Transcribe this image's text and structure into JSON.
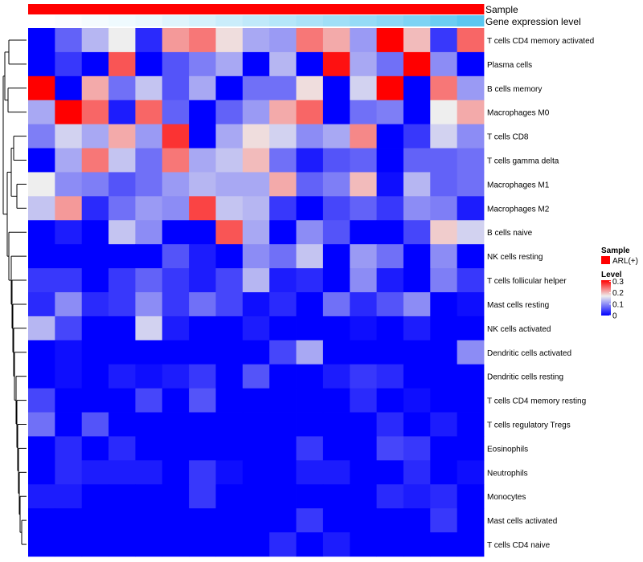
{
  "chart_data": {
    "type": "heatmap",
    "title": "",
    "annotation_tracks": [
      {
        "name": "Sample",
        "label": "Sample"
      },
      {
        "name": "Gene expression level",
        "label": "Gene expression level"
      }
    ],
    "rows": [
      "T cells CD4 memory activated",
      "Plasma cells",
      "B cells memory",
      "Macrophages M0",
      "T cells CD8",
      "T cells gamma delta",
      "Macrophages M1",
      "Macrophages M2",
      "B cells naive",
      "NK cells resting",
      "T cells follicular helper",
      "Mast cells resting",
      "NK cells activated",
      "Dendritic cells activated",
      "Dendritic cells resting",
      "T cells CD4 memory resting",
      "T cells regulatory  Tregs",
      "Eosinophils",
      "Neutrophils",
      "Monocytes",
      "Mast cells activated",
      "T cells CD4 naive"
    ],
    "n_columns": 17,
    "values": [
      [
        0.0,
        0.07,
        0.13,
        0.17,
        0.03,
        0.22,
        0.24,
        0.18,
        0.12,
        0.11,
        0.24,
        0.21,
        0.11,
        0.31,
        0.2,
        0.04,
        0.25
      ],
      [
        0.0,
        0.04,
        0.0,
        0.26,
        0.0,
        0.06,
        0.09,
        0.12,
        0.0,
        0.13,
        0.0,
        0.3,
        0.12,
        0.08,
        0.31,
        0.1,
        0.0
      ],
      [
        0.31,
        0.0,
        0.21,
        0.08,
        0.14,
        0.06,
        0.12,
        0.0,
        0.08,
        0.08,
        0.18,
        0.0,
        0.15,
        0.31,
        0.0,
        0.24,
        0.11
      ],
      [
        0.12,
        0.31,
        0.25,
        0.02,
        0.25,
        0.07,
        0.0,
        0.07,
        0.11,
        0.21,
        0.25,
        0.0,
        0.08,
        0.09,
        0.0,
        0.17,
        0.21
      ],
      [
        0.09,
        0.15,
        0.12,
        0.21,
        0.11,
        0.28,
        0.0,
        0.12,
        0.18,
        0.15,
        0.1,
        0.12,
        0.23,
        0.0,
        0.04,
        0.15,
        0.1
      ],
      [
        0.0,
        0.12,
        0.24,
        0.14,
        0.08,
        0.24,
        0.12,
        0.14,
        0.2,
        0.08,
        0.02,
        0.06,
        0.07,
        0.0,
        0.07,
        0.07,
        0.08
      ],
      [
        0.17,
        0.1,
        0.09,
        0.06,
        0.08,
        0.11,
        0.13,
        0.12,
        0.12,
        0.21,
        0.07,
        0.09,
        0.2,
        0.01,
        0.13,
        0.07,
        0.08
      ],
      [
        0.14,
        0.22,
        0.03,
        0.08,
        0.11,
        0.1,
        0.27,
        0.14,
        0.13,
        0.04,
        0.0,
        0.05,
        0.07,
        0.04,
        0.1,
        0.09,
        0.02
      ],
      [
        0.0,
        0.02,
        0.0,
        0.14,
        0.1,
        0.0,
        0.0,
        0.26,
        0.12,
        0.0,
        0.1,
        0.06,
        0.0,
        0.0,
        0.05,
        0.19,
        0.15
      ],
      [
        0.0,
        0.0,
        0.0,
        0.0,
        0.0,
        0.06,
        0.02,
        0.0,
        0.1,
        0.08,
        0.14,
        0.0,
        0.11,
        0.08,
        0.0,
        0.1,
        0.0
      ],
      [
        0.04,
        0.04,
        0.0,
        0.04,
        0.07,
        0.04,
        0.02,
        0.05,
        0.13,
        0.02,
        0.03,
        0.0,
        0.1,
        0.02,
        0.0,
        0.09,
        0.04
      ],
      [
        0.03,
        0.1,
        0.03,
        0.04,
        0.1,
        0.04,
        0.08,
        0.05,
        0.01,
        0.03,
        0.0,
        0.08,
        0.03,
        0.06,
        0.1,
        0.0,
        0.01
      ],
      [
        0.13,
        0.05,
        0.0,
        0.0,
        0.15,
        0.02,
        0.0,
        0.0,
        0.02,
        0.0,
        0.0,
        0.0,
        0.01,
        0.0,
        0.02,
        0.0,
        0.0
      ],
      [
        0.0,
        0.01,
        0.0,
        0.0,
        0.0,
        0.0,
        0.0,
        0.0,
        0.0,
        0.05,
        0.12,
        0.0,
        0.0,
        0.0,
        0.0,
        0.0,
        0.1
      ],
      [
        0.0,
        0.01,
        0.0,
        0.02,
        0.01,
        0.02,
        0.04,
        0.0,
        0.06,
        0.0,
        0.0,
        0.02,
        0.04,
        0.03,
        0.0,
        0.0,
        0.0
      ],
      [
        0.05,
        0.0,
        0.0,
        0.0,
        0.05,
        0.0,
        0.06,
        0.0,
        0.0,
        0.0,
        0.0,
        0.0,
        0.03,
        0.0,
        0.01,
        0.0,
        0.0
      ],
      [
        0.08,
        0.0,
        0.06,
        0.0,
        0.0,
        0.0,
        0.0,
        0.0,
        0.0,
        0.0,
        0.0,
        0.0,
        0.0,
        0.03,
        0.0,
        0.02,
        0.0
      ],
      [
        0.0,
        0.03,
        0.0,
        0.03,
        0.0,
        0.0,
        0.0,
        0.0,
        0.0,
        0.0,
        0.04,
        0.0,
        0.0,
        0.05,
        0.04,
        0.0,
        0.0
      ],
      [
        0.0,
        0.03,
        0.02,
        0.02,
        0.02,
        0.0,
        0.04,
        0.01,
        0.0,
        0.0,
        0.02,
        0.02,
        0.0,
        0.0,
        0.03,
        0.0,
        0.01
      ],
      [
        0.02,
        0.02,
        0.0,
        0.0,
        0.0,
        0.0,
        0.04,
        0.0,
        0.0,
        0.0,
        0.0,
        0.0,
        0.0,
        0.03,
        0.02,
        0.03,
        0.0
      ],
      [
        0.0,
        0.0,
        0.0,
        0.0,
        0.0,
        0.0,
        0.0,
        0.0,
        0.0,
        0.0,
        0.04,
        0.0,
        0.0,
        0.0,
        0.0,
        0.04,
        0.0
      ],
      [
        0.0,
        0.0,
        0.0,
        0.0,
        0.0,
        0.0,
        0.0,
        0.0,
        0.0,
        0.03,
        0.0,
        0.02,
        0.0,
        0.0,
        0.0,
        0.0,
        0.0
      ]
    ],
    "gene_expression_level": [
      0.0,
      0.03,
      0.06,
      0.09,
      0.12,
      0.18,
      0.24,
      0.3,
      0.36,
      0.42,
      0.48,
      0.54,
      0.6,
      0.66,
      0.74,
      0.84,
      0.94
    ],
    "sample_groups": [
      "ARL(+)",
      "ARL(+)",
      "ARL(+)",
      "ARL(+)",
      "ARL(+)",
      "ARL(+)",
      "ARL(+)",
      "ARL(+)",
      "ARL(+)",
      "ARL(+)",
      "ARL(+)",
      "ARL(+)",
      "ARL(+)",
      "ARL(+)",
      "ARL(+)",
      "ARL(+)",
      "ARL(+)"
    ],
    "color_scale": {
      "min": 0,
      "mid": 0.17,
      "max": 0.31,
      "low": "#0000ff",
      "mid_color": "#eeeeee",
      "high": "#ff0000"
    },
    "legend_sample": {
      "title": "Sample",
      "items": [
        {
          "label": "ARL(+)",
          "color": "#ff0000"
        }
      ]
    },
    "legend_level": {
      "title": "Level",
      "ticks": [
        0.3,
        0.2,
        0.1,
        0
      ],
      "tick_labels": [
        "0.3",
        "0.2",
        "0.1",
        "0"
      ]
    },
    "gene_track_colors": {
      "low": "#ffffff",
      "high": "#4fc3f0"
    },
    "dendrogram_side": "left"
  }
}
